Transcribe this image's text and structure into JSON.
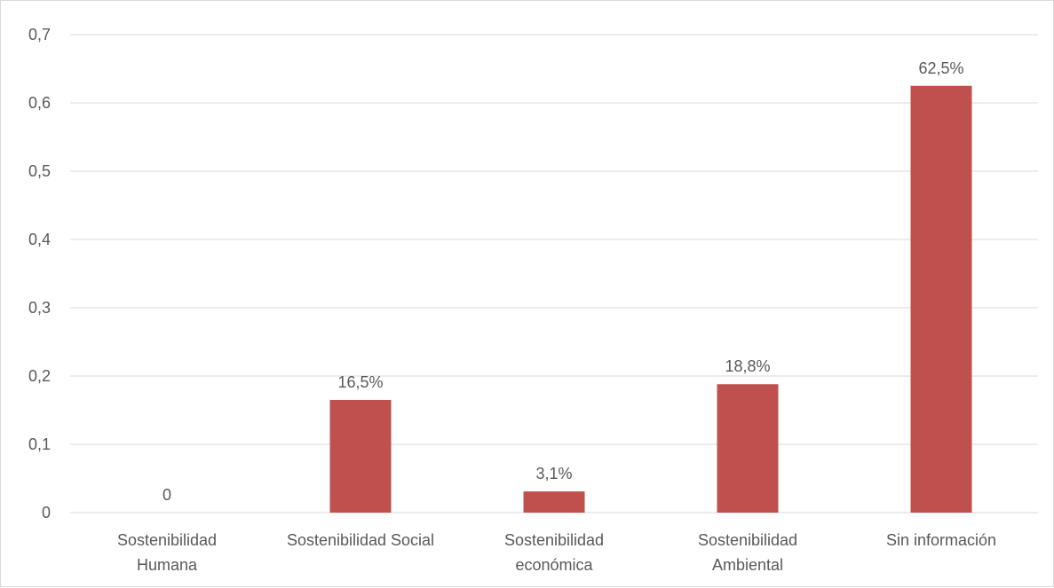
{
  "chart_data": {
    "type": "bar",
    "categories": [
      [
        "Sostenibilidad",
        "Humana"
      ],
      [
        "Sostenibilidad Social"
      ],
      [
        "Sostenibilidad",
        "económica"
      ],
      [
        "Sostenibilidad",
        "Ambiental"
      ],
      [
        "Sin información"
      ]
    ],
    "values": [
      0,
      0.165,
      0.031,
      0.188,
      0.625
    ],
    "data_labels": [
      "0",
      "16,5%",
      "3,1%",
      "18,8%",
      "62,5%"
    ],
    "yticks": [
      "0",
      "0,1",
      "0,2",
      "0,3",
      "0,4",
      "0,5",
      "0,6",
      "0,7"
    ],
    "ylim": [
      0,
      0.7
    ],
    "grid": true,
    "legend": "none",
    "title": "",
    "xlabel": "",
    "ylabel": "",
    "colors": {
      "bar": "#c0504d",
      "grid": "#d9d9d9",
      "text": "#595959"
    }
  }
}
